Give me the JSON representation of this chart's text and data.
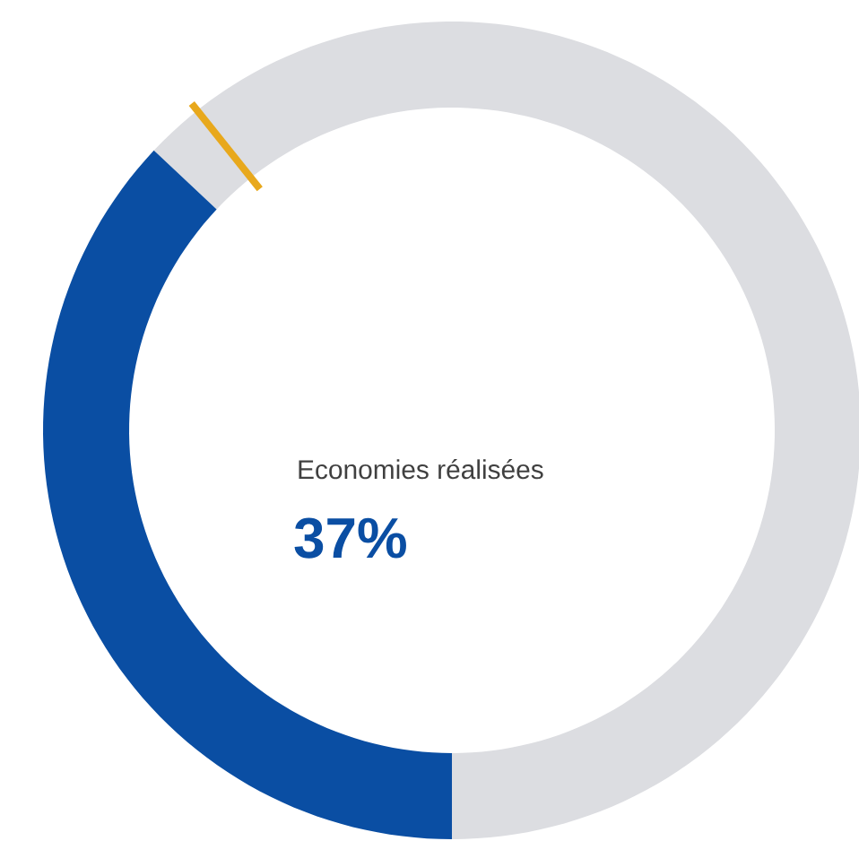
{
  "chart_data": {
    "type": "donut",
    "title": "Economies réalisées",
    "categories": [
      null,
      null
    ],
    "values": [
      37,
      63
    ],
    "colors": [
      "#0a4ea3",
      "#dcdde1"
    ],
    "value_labels": [
      "37%",
      null
    ]
  }
}
